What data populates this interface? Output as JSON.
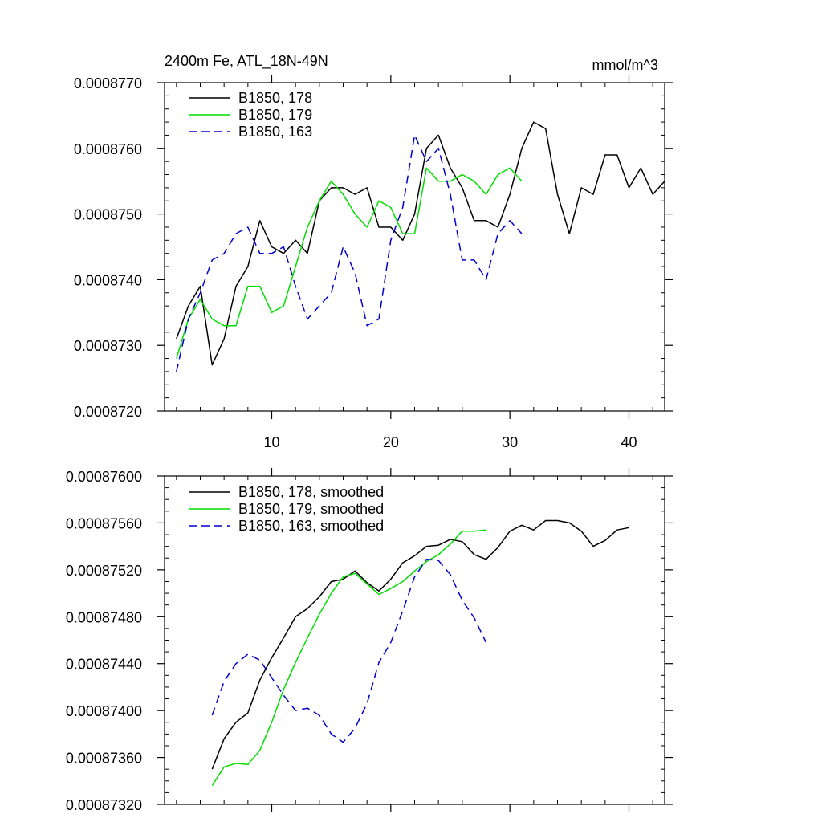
{
  "chart_data": [
    {
      "type": "line",
      "title": "2400m Fe, ATL_18N-49N",
      "units": "mmol/m^3",
      "xlim": [
        1,
        43
      ],
      "ylim": [
        0.000872,
        0.000877
      ],
      "xticks": [
        10,
        20,
        30,
        40
      ],
      "xtick_labels": [
        "10",
        "20",
        "30",
        "40"
      ],
      "yticks": [
        0.000872,
        0.000873,
        0.000874,
        0.000875,
        0.000876,
        0.000877
      ],
      "ytick_labels": [
        "0.0008720",
        "0.0008730",
        "0.0008740",
        "0.0008750",
        "0.0008760",
        "0.0008770"
      ],
      "legend": "top-left",
      "series": [
        {
          "name": "B1850, 178",
          "color": "#000000",
          "dash": "solid",
          "x": [
            2,
            3,
            4,
            5,
            6,
            7,
            8,
            9,
            10,
            11,
            12,
            13,
            14,
            15,
            16,
            17,
            18,
            19,
            20,
            21,
            22,
            23,
            24,
            25,
            26,
            27,
            28,
            29,
            30,
            31,
            32,
            33,
            34,
            35,
            36,
            37,
            38,
            39,
            40,
            41,
            42,
            43
          ],
          "values": [
            0.0008731,
            0.0008736,
            0.0008739,
            0.0008727,
            0.0008731,
            0.0008739,
            0.0008742,
            0.0008749,
            0.0008745,
            0.0008744,
            0.0008746,
            0.0008744,
            0.0008752,
            0.0008754,
            0.0008754,
            0.0008753,
            0.0008754,
            0.0008748,
            0.0008748,
            0.0008746,
            0.000875,
            0.000876,
            0.0008762,
            0.0008757,
            0.0008754,
            0.0008749,
            0.0008749,
            0.0008748,
            0.0008753,
            0.000876,
            0.0008764,
            0.0008763,
            0.0008753,
            0.0008747,
            0.0008754,
            0.0008753,
            0.0008759,
            0.0008759,
            0.0008754,
            0.0008757,
            0.0008753,
            0.0008755
          ]
        },
        {
          "name": "B1850, 179",
          "color": "#00dd00",
          "dash": "solid",
          "x": [
            2,
            3,
            4,
            5,
            6,
            7,
            8,
            9,
            10,
            11,
            12,
            13,
            14,
            15,
            16,
            17,
            18,
            19,
            20,
            21,
            22,
            23,
            24,
            25,
            26,
            27,
            28,
            29,
            30,
            31
          ],
          "values": [
            0.0008728,
            0.0008734,
            0.0008737,
            0.0008734,
            0.0008733,
            0.0008733,
            0.0008739,
            0.0008739,
            0.0008735,
            0.0008736,
            0.0008742,
            0.0008748,
            0.0008752,
            0.0008755,
            0.0008753,
            0.000875,
            0.0008748,
            0.0008752,
            0.0008751,
            0.0008747,
            0.0008747,
            0.0008757,
            0.0008755,
            0.0008755,
            0.0008756,
            0.0008755,
            0.0008753,
            0.0008756,
            0.0008757,
            0.0008755
          ]
        },
        {
          "name": "B1850, 163",
          "color": "#0000cc",
          "dash": "dashed",
          "x": [
            2,
            3,
            4,
            5,
            6,
            7,
            8,
            9,
            10,
            11,
            12,
            13,
            14,
            15,
            16,
            17,
            18,
            19,
            20,
            21,
            22,
            23,
            24,
            25,
            26,
            27,
            28,
            29,
            30,
            31
          ],
          "values": [
            0.0008726,
            0.0008734,
            0.0008738,
            0.0008743,
            0.0008744,
            0.0008747,
            0.0008748,
            0.0008744,
            0.0008744,
            0.0008745,
            0.0008739,
            0.0008734,
            0.0008736,
            0.0008738,
            0.0008745,
            0.0008741,
            0.0008733,
            0.0008734,
            0.0008746,
            0.0008751,
            0.0008762,
            0.0008758,
            0.000876,
            0.0008753,
            0.0008743,
            0.0008743,
            0.000874,
            0.0008747,
            0.0008749,
            0.0008747
          ]
        }
      ]
    },
    {
      "type": "line",
      "title": "",
      "units": "",
      "xlim": [
        1,
        43
      ],
      "ylim": [
        0.0008732,
        0.000876
      ],
      "xticks": [
        10,
        20,
        30,
        40
      ],
      "xtick_labels": [],
      "yticks": [
        0.0008732,
        0.0008736,
        0.000874,
        0.0008744,
        0.0008748,
        0.0008752,
        0.0008756,
        0.000876
      ],
      "ytick_labels": [
        "0.00087320",
        "0.00087360",
        "0.00087400",
        "0.00087440",
        "0.00087480",
        "0.00087520",
        "0.00087560",
        "0.00087600"
      ],
      "legend": "top-left",
      "series": [
        {
          "name": "B1850, 178, smoothed",
          "color": "#000000",
          "dash": "solid",
          "x": [
            5,
            6,
            7,
            8,
            9,
            10,
            11,
            12,
            13,
            14,
            15,
            16,
            17,
            18,
            19,
            20,
            21,
            22,
            23,
            24,
            25,
            26,
            27,
            28,
            29,
            30,
            31,
            32,
            33,
            34,
            35,
            36,
            37,
            38,
            39,
            40
          ],
          "values": [
            0.0008735,
            0.00087376,
            0.0008739,
            0.00087398,
            0.00087426,
            0.00087445,
            0.00087462,
            0.0008748,
            0.00087487,
            0.00087497,
            0.0008751,
            0.00087512,
            0.00087519,
            0.00087509,
            0.00087502,
            0.00087512,
            0.00087526,
            0.00087532,
            0.0008754,
            0.00087541,
            0.00087546,
            0.00087544,
            0.00087533,
            0.00087529,
            0.00087539,
            0.00087553,
            0.00087558,
            0.00087554,
            0.00087562,
            0.00087562,
            0.0008756,
            0.00087553,
            0.0008754,
            0.00087545,
            0.00087554,
            0.00087556
          ]
        },
        {
          "name": "B1850, 179, smoothed",
          "color": "#00dd00",
          "dash": "solid",
          "x": [
            5,
            6,
            7,
            8,
            9,
            10,
            11,
            12,
            13,
            14,
            15,
            16,
            17,
            18,
            19,
            20,
            21,
            22,
            23,
            24,
            25,
            26,
            27,
            28
          ],
          "values": [
            0.00087336,
            0.00087352,
            0.00087355,
            0.00087354,
            0.00087366,
            0.0008739,
            0.00087418,
            0.00087441,
            0.00087462,
            0.00087482,
            0.000875,
            0.00087514,
            0.00087517,
            0.00087508,
            0.00087499,
            0.00087504,
            0.0008751,
            0.00087519,
            0.00087527,
            0.00087533,
            0.00087542,
            0.00087553,
            0.00087553,
            0.00087554
          ]
        },
        {
          "name": "B1850, 163, smoothed",
          "color": "#0000cc",
          "dash": "dashed",
          "x": [
            5,
            6,
            7,
            8,
            9,
            10,
            11,
            12,
            13,
            14,
            15,
            16,
            17,
            18,
            19,
            20,
            21,
            22,
            23,
            24,
            25,
            26,
            27,
            28
          ],
          "values": [
            0.00087396,
            0.00087425,
            0.0008744,
            0.00087448,
            0.00087443,
            0.00087428,
            0.00087413,
            0.000874,
            0.00087402,
            0.00087396,
            0.0008738,
            0.00087373,
            0.00087385,
            0.00087406,
            0.00087441,
            0.00087458,
            0.00087485,
            0.00087514,
            0.00087529,
            0.00087528,
            0.00087516,
            0.00087494,
            0.00087479,
            0.00087458
          ]
        }
      ]
    }
  ]
}
